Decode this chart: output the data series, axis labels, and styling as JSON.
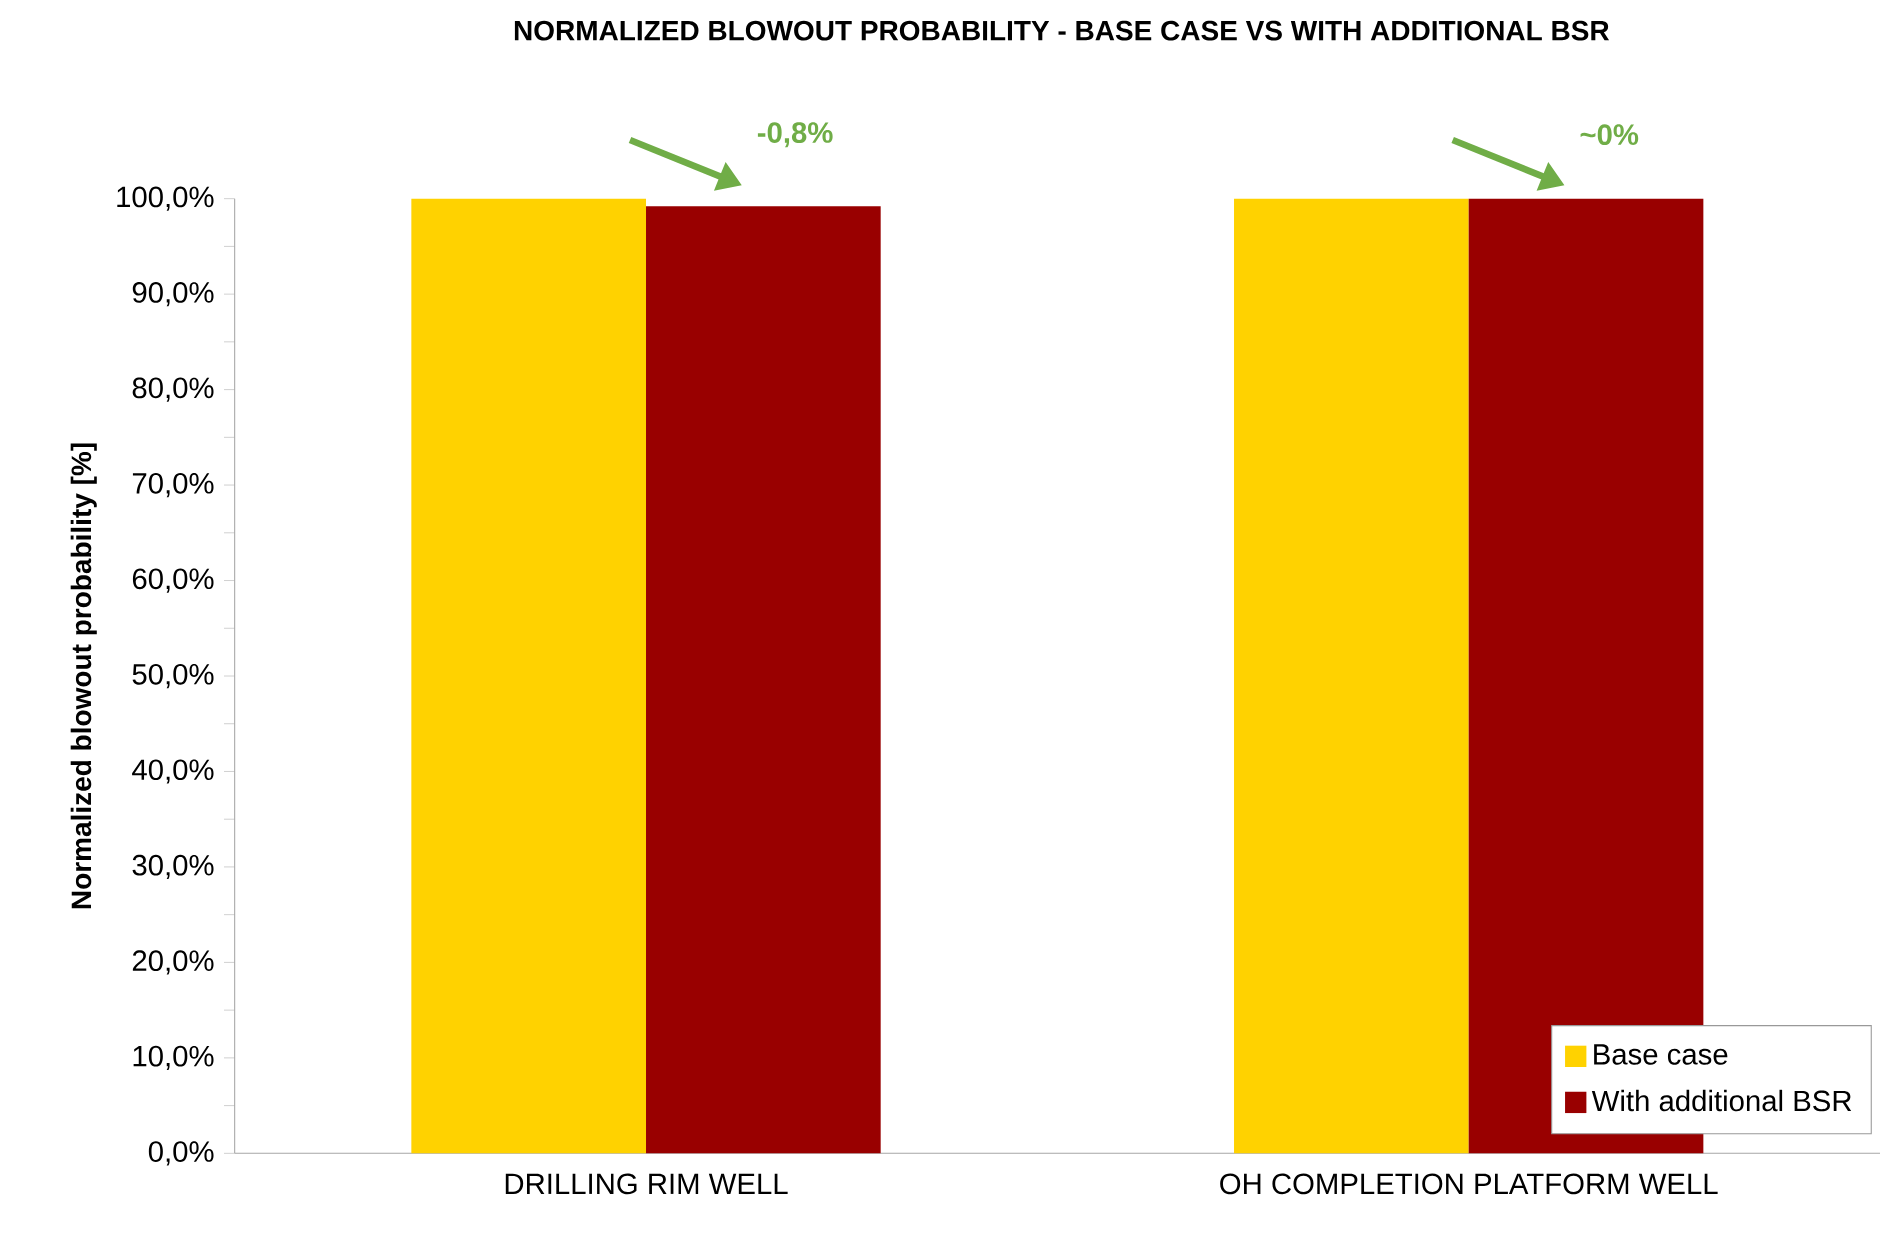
{
  "chart_data": {
    "type": "bar",
    "title": "NORMALIZED BLOWOUT PROBABILITY - BASE CASE VS WITH ADDITIONAL BSR",
    "ylabel": "Normalized blowout probability [%]",
    "categories": [
      "DRILLING RIM WELL",
      "OH COMPLETION PLATFORM WELL"
    ],
    "series": [
      {
        "name": "Base case",
        "color": "#ffd200",
        "values": [
          100,
          100
        ]
      },
      {
        "name": "With additional BSR",
        "color": "#990000",
        "values": [
          99.2,
          100
        ]
      }
    ],
    "ylim": [
      0,
      100
    ],
    "yticks": [
      {
        "value": 0,
        "label": "0,0%"
      },
      {
        "value": 10,
        "label": "10,0%"
      },
      {
        "value": 20,
        "label": "20,0%"
      },
      {
        "value": 30,
        "label": "30,0%"
      },
      {
        "value": 40,
        "label": "40,0%"
      },
      {
        "value": 50,
        "label": "50,0%"
      },
      {
        "value": 60,
        "label": "60,0%"
      },
      {
        "value": 70,
        "label": "70,0%"
      },
      {
        "value": 80,
        "label": "80,0%"
      },
      {
        "value": 90,
        "label": "90,0%"
      },
      {
        "value": 100,
        "label": "100,0%"
      }
    ],
    "annotations": [
      "-0,8%",
      "~0%"
    ],
    "legend": "bottom right",
    "grid": false
  }
}
